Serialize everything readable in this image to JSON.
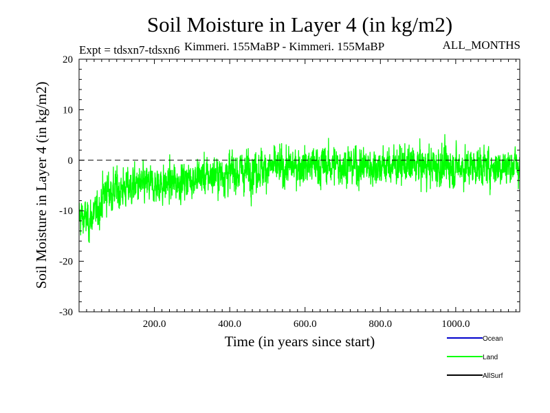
{
  "chart_data": {
    "type": "line",
    "title": "Soil Moisture in Layer 4 (in kg/m2)",
    "subtitle_left": "Expt = tdsxn7-tdsxn6",
    "subtitle_center": "Kimmeri. 155MaBP - Kimmeri. 155MaBP",
    "subtitle_right": "ALL_MONTHS",
    "xlabel": "Time (in years since start)",
    "ylabel": "Soil Moisture in Layer 4 (in kg/m2)",
    "xlim": [
      0,
      1170
    ],
    "ylim": [
      -30,
      20
    ],
    "x_ticks": [
      200,
      400,
      600,
      800,
      1000
    ],
    "x_tick_labels": [
      "200.0",
      "400.0",
      "600.0",
      "800.0",
      "1000.0"
    ],
    "y_ticks": [
      -30,
      -20,
      -10,
      0,
      10,
      20
    ],
    "y_tick_labels": [
      "-30",
      "-20",
      "-10",
      "0",
      "10",
      "20"
    ],
    "zero_line": true,
    "legend_position": "bottom-right",
    "series": [
      {
        "name": "Land",
        "color": "#00ff00",
        "x": [
          0,
          25,
          50,
          70,
          100,
          150,
          200,
          250,
          300,
          350,
          400,
          450,
          500,
          550,
          600,
          650,
          700,
          750,
          800,
          850,
          900,
          950,
          1000,
          1050,
          1100,
          1150,
          1170
        ],
        "values": [
          -11,
          -12,
          -10,
          -6,
          -6,
          -5,
          -5,
          -4.5,
          -3.5,
          -3,
          -2.5,
          -2,
          -1.5,
          -1.5,
          -1,
          -1,
          -1,
          -1.2,
          -1.2,
          -1,
          -1,
          -1.2,
          -1.2,
          -1.2,
          -1.2,
          -1,
          -1
        ],
        "noise_amplitude": [
          5,
          5,
          4.5,
          6,
          5.5,
          5,
          5,
          5,
          5,
          5,
          5.5,
          5.5,
          5,
          5,
          5,
          5.5,
          5,
          5,
          5,
          5,
          5,
          5.5,
          5,
          5,
          5,
          5,
          5
        ]
      }
    ],
    "legend": [
      {
        "name": "Ocean",
        "color": "#0000cc"
      },
      {
        "name": "Land",
        "color": "#00ff00"
      },
      {
        "name": "AllSurf",
        "color": "#000000"
      }
    ]
  }
}
